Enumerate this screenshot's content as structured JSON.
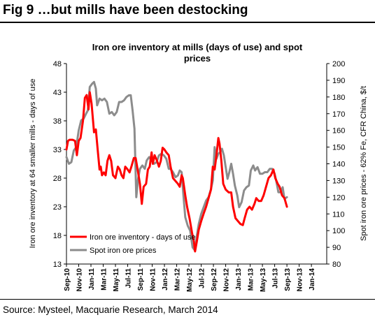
{
  "figure": {
    "title": "Fig 9   …but mills have been destocking",
    "source": "Source: Mysteel, Macquarie Research, March 2014"
  },
  "chart_data": {
    "type": "line",
    "title_lines": [
      "Iron ore inventory at mills (days of use) and spot",
      "prices"
    ],
    "ylabel_left": "Iron ore inventory at 64 smaller mills - days of use",
    "ylabel_right": "Spot iron ore prices - 62% Fe, CFR China, $/t",
    "ylim_left": [
      13,
      48
    ],
    "ylim_right": [
      80,
      200
    ],
    "yticks_left": [
      "13",
      "18",
      "23",
      "28",
      "33",
      "38",
      "43",
      "48"
    ],
    "yticks_right": [
      "80",
      "90",
      "100",
      "110",
      "120",
      "130",
      "140",
      "150",
      "160",
      "170",
      "180",
      "190",
      "200"
    ],
    "x_range": [
      0,
      42.5
    ],
    "x_tick_labels": [
      "Sep-10",
      "Nov-10",
      "Jan-11",
      "Mar-11",
      "May-11",
      "Jul-11",
      "Sep-11",
      "Nov-11",
      "Jan-12",
      "Mar-12",
      "May-12",
      "Jul-12",
      "Sep-12",
      "Nov-12",
      "Jan-13",
      "Mar-13",
      "May-13",
      "Jul-13",
      "Sep-13",
      "Nov-13",
      "Jan-14"
    ],
    "x_tick_months": [
      0,
      2,
      4,
      6,
      8,
      10,
      12,
      14,
      16,
      18,
      20,
      22,
      24,
      26,
      28,
      30,
      32,
      34,
      36,
      38,
      40
    ],
    "grid": false,
    "legend_position": "bottom-left",
    "series": [
      {
        "name": "Iron ore inventory - days of use",
        "axis": "left",
        "color": "#ff0000",
        "points": [
          [
            0,
            33
          ],
          [
            0.25,
            34.5
          ],
          [
            0.5,
            34.7
          ],
          [
            1,
            34.7
          ],
          [
            1.4,
            34.5
          ],
          [
            1.7,
            32
          ],
          [
            2,
            34.5
          ],
          [
            2.3,
            35
          ],
          [
            2.7,
            38
          ],
          [
            3,
            42
          ],
          [
            3.3,
            42.5
          ],
          [
            3.6,
            40
          ],
          [
            3.8,
            43
          ],
          [
            4.1,
            41
          ],
          [
            4.5,
            36
          ],
          [
            4.8,
            36.5
          ],
          [
            5.1,
            33
          ],
          [
            5.4,
            29.5
          ],
          [
            5.6,
            30
          ],
          [
            5.8,
            28.5
          ],
          [
            6.1,
            29
          ],
          [
            6.4,
            28.5
          ],
          [
            6.7,
            31
          ],
          [
            7,
            32
          ],
          [
            7.3,
            31
          ],
          [
            7.6,
            28.5
          ],
          [
            8,
            28
          ],
          [
            8.4,
            30
          ],
          [
            8.7,
            29.5
          ],
          [
            9,
            28.5
          ],
          [
            9.3,
            28
          ],
          [
            9.6,
            30
          ],
          [
            10,
            29.5
          ],
          [
            10.3,
            29
          ],
          [
            10.6,
            30
          ],
          [
            11,
            31.5
          ],
          [
            11.3,
            31.5
          ],
          [
            11.7,
            29
          ],
          [
            12,
            27
          ],
          [
            12.3,
            23.5
          ],
          [
            12.6,
            26.5
          ],
          [
            13,
            27
          ],
          [
            13.3,
            29.5
          ],
          [
            13.6,
            30
          ],
          [
            13.9,
            32.5
          ],
          [
            14.1,
            30.5
          ],
          [
            14.4,
            32
          ],
          [
            14.8,
            31
          ],
          [
            15.1,
            30
          ],
          [
            15.4,
            31
          ],
          [
            15.7,
            33.3
          ],
          [
            16,
            33
          ],
          [
            16.3,
            32.5
          ],
          [
            16.7,
            32
          ],
          [
            17,
            30
          ],
          [
            17.4,
            28
          ],
          [
            17.8,
            27.5
          ],
          [
            18.2,
            27
          ],
          [
            18.5,
            26.5
          ],
          [
            18.8,
            28.5
          ],
          [
            19,
            28
          ],
          [
            19.4,
            25
          ],
          [
            19.7,
            23
          ],
          [
            20.1,
            21
          ],
          [
            20.5,
            18.5
          ],
          [
            20.8,
            17
          ],
          [
            21,
            15.2
          ],
          [
            21.3,
            17
          ],
          [
            21.6,
            19
          ],
          [
            22,
            20.5
          ],
          [
            22.4,
            21.8
          ],
          [
            22.8,
            23
          ],
          [
            23.2,
            24.5
          ],
          [
            23.6,
            26
          ],
          [
            23.9,
            30
          ],
          [
            24.2,
            29.5
          ],
          [
            24.5,
            32
          ],
          [
            24.8,
            35
          ],
          [
            25,
            34
          ],
          [
            25.3,
            31
          ],
          [
            25.6,
            27
          ],
          [
            26,
            26
          ],
          [
            26.5,
            25.5
          ],
          [
            26.9,
            25.5
          ],
          [
            27.2,
            23
          ],
          [
            27.6,
            21
          ],
          [
            28,
            20.5
          ],
          [
            28.4,
            20
          ],
          [
            28.8,
            19.8
          ],
          [
            29.1,
            21
          ],
          [
            29.5,
            22.5
          ],
          [
            29.9,
            23
          ],
          [
            30.3,
            22.5
          ],
          [
            30.7,
            23.5
          ],
          [
            31,
            24.5
          ],
          [
            31.4,
            24
          ],
          [
            31.8,
            24
          ],
          [
            32.2,
            25
          ],
          [
            32.6,
            26.5
          ],
          [
            33,
            28
          ],
          [
            33.4,
            28.5
          ],
          [
            33.8,
            29.5
          ],
          [
            34.1,
            28
          ],
          [
            34.5,
            27
          ],
          [
            34.8,
            26.5
          ],
          [
            35.2,
            25
          ],
          [
            35.6,
            24.5
          ],
          [
            36,
            23
          ]
        ]
      },
      {
        "name": "Spot iron ore prices",
        "axis": "right",
        "color": "#8c8c8c",
        "points": [
          [
            0,
            144
          ],
          [
            0.4,
            140
          ],
          [
            0.8,
            141
          ],
          [
            1.2,
            148
          ],
          [
            1.6,
            150
          ],
          [
            2,
            160
          ],
          [
            2.4,
            166
          ],
          [
            2.8,
            167
          ],
          [
            3.2,
            170
          ],
          [
            3.5,
            172
          ],
          [
            3.8,
            186
          ],
          [
            4.2,
            188
          ],
          [
            4.5,
            189
          ],
          [
            4.8,
            185
          ],
          [
            5,
            175
          ],
          [
            5.4,
            179
          ],
          [
            5.8,
            178
          ],
          [
            6.2,
            179
          ],
          [
            6.6,
            177
          ],
          [
            7,
            170
          ],
          [
            7.4,
            171
          ],
          [
            7.8,
            169
          ],
          [
            8.2,
            171
          ],
          [
            8.6,
            177
          ],
          [
            9,
            177
          ],
          [
            9.4,
            178
          ],
          [
            9.8,
            180
          ],
          [
            10.2,
            181
          ],
          [
            10.5,
            181
          ],
          [
            10.8,
            172
          ],
          [
            11.1,
            161
          ],
          [
            11.4,
            120
          ],
          [
            11.7,
            131
          ],
          [
            12,
            137
          ],
          [
            12.4,
            139
          ],
          [
            12.8,
            137
          ],
          [
            13.1,
            142
          ],
          [
            13.5,
            144
          ],
          [
            13.9,
            142
          ],
          [
            14.3,
            140
          ],
          [
            14.7,
            141
          ],
          [
            15.1,
            145
          ],
          [
            15.5,
            146
          ],
          [
            15.9,
            145
          ],
          [
            16.3,
            143
          ],
          [
            16.7,
            137
          ],
          [
            17,
            137
          ],
          [
            17.4,
            135
          ],
          [
            17.8,
            132
          ],
          [
            18.2,
            133
          ],
          [
            18.5,
            136
          ],
          [
            18.8,
            135
          ],
          [
            19.1,
            121
          ],
          [
            19.4,
            108
          ],
          [
            19.8,
            103
          ],
          [
            20.2,
            100
          ],
          [
            20.6,
            90
          ],
          [
            21,
            88
          ],
          [
            21.3,
            97
          ],
          [
            21.6,
            104
          ],
          [
            22,
            110
          ],
          [
            22.4,
            114
          ],
          [
            22.8,
            118
          ],
          [
            23.2,
            120
          ],
          [
            23.6,
            125
          ],
          [
            23.9,
            130
          ],
          [
            24.2,
            150
          ],
          [
            24.5,
            143
          ],
          [
            24.8,
            146
          ],
          [
            25.1,
            147
          ],
          [
            25.4,
            149
          ],
          [
            25.7,
            145
          ],
          [
            26,
            138
          ],
          [
            26.3,
            131
          ],
          [
            26.6,
            135
          ],
          [
            26.9,
            140
          ],
          [
            27.2,
            134
          ],
          [
            27.5,
            127
          ],
          [
            27.9,
            121
          ],
          [
            28.2,
            114
          ],
          [
            28.6,
            117
          ],
          [
            29,
            124
          ],
          [
            29.4,
            126
          ],
          [
            29.8,
            127
          ],
          [
            30.1,
            136
          ],
          [
            30.5,
            139
          ],
          [
            30.8,
            136
          ],
          [
            31.2,
            138
          ],
          [
            31.6,
            134
          ],
          [
            32,
            134
          ],
          [
            32.4,
            135
          ],
          [
            32.8,
            135
          ],
          [
            33.2,
            137
          ],
          [
            33.6,
            137
          ],
          [
            34,
            134
          ],
          [
            34.3,
            129
          ],
          [
            34.6,
            123
          ],
          [
            35,
            123
          ],
          [
            35.3,
            126
          ],
          [
            35.6,
            119
          ],
          [
            36,
            120
          ]
        ]
      }
    ]
  }
}
